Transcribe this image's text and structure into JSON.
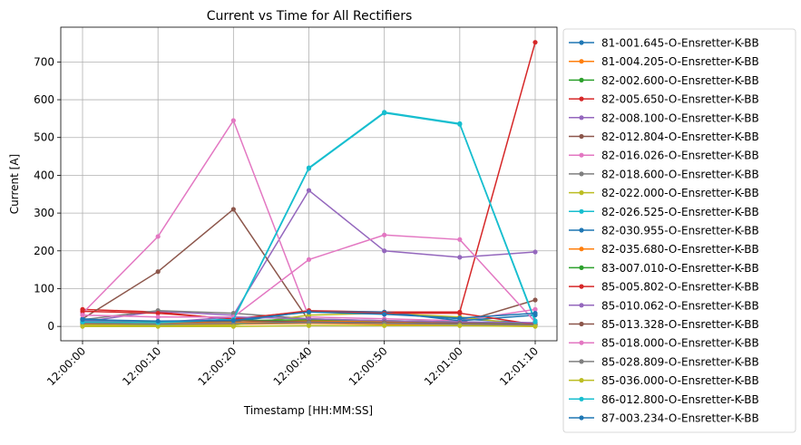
{
  "chart_data": {
    "type": "line",
    "title": "Current vs Time for All Rectifiers",
    "xlabel": "Timestamp [HH:MM:SS]",
    "ylabel": "Current [A]",
    "categories": [
      "12:00:00",
      "12:00:10",
      "12:00:20",
      "12:00:40",
      "12:00:50",
      "12:01:00",
      "12:01:10"
    ],
    "ylim": [
      -38,
      792
    ],
    "yticks": [
      0,
      100,
      200,
      300,
      400,
      500,
      600,
      700
    ],
    "grid": true,
    "legend": "outside-right",
    "series": [
      {
        "name": "81-001.645-O-Ensretter-K-BB",
        "color": "#1f77b4",
        "values": [
          15,
          12,
          15,
          40,
          35,
          20,
          8
        ]
      },
      {
        "name": "81-004.205-O-Ensretter-K-BB",
        "color": "#ff7f0e",
        "values": [
          5,
          4,
          6,
          8,
          6,
          5,
          3
        ]
      },
      {
        "name": "82-002.600-O-Ensretter-K-BB",
        "color": "#2ca02c",
        "values": [
          8,
          6,
          10,
          12,
          10,
          8,
          5
        ]
      },
      {
        "name": "82-005.650-O-Ensretter-K-BB",
        "color": "#d62728",
        "values": [
          45,
          38,
          18,
          42,
          38,
          38,
          752
        ]
      },
      {
        "name": "82-008.100-O-Ensretter-K-BB",
        "color": "#9467bd",
        "values": [
          12,
          40,
          30,
          360,
          200,
          183,
          197
        ]
      },
      {
        "name": "82-012.804-O-Ensretter-K-BB",
        "color": "#8c564b",
        "values": [
          20,
          145,
          310,
          15,
          12,
          10,
          70
        ]
      },
      {
        "name": "82-016.026-O-Ensretter-K-BB",
        "color": "#e377c2",
        "values": [
          35,
          238,
          545,
          25,
          20,
          15,
          45
        ]
      },
      {
        "name": "82-018.600-O-Ensretter-K-BB",
        "color": "#7f7f7f",
        "values": [
          18,
          42,
          35,
          20,
          15,
          12,
          5
        ]
      },
      {
        "name": "82-022.000-O-Ensretter-K-BB",
        "color": "#bcbd22",
        "values": [
          3,
          2,
          3,
          30,
          35,
          25,
          2
        ]
      },
      {
        "name": "82-026.525-O-Ensretter-K-BB",
        "color": "#17becf",
        "values": [
          10,
          8,
          20,
          420,
          567,
          537,
          15
        ]
      },
      {
        "name": "82-030.955-O-Ensretter-K-BB",
        "color": "#1f77b4",
        "values": [
          20,
          10,
          12,
          40,
          38,
          15,
          30
        ]
      },
      {
        "name": "82-035.680-O-Ensretter-K-BB",
        "color": "#ff7f0e",
        "values": [
          10,
          8,
          10,
          15,
          12,
          10,
          5
        ]
      },
      {
        "name": "83-007.010-O-Ensretter-K-BB",
        "color": "#2ca02c",
        "values": [
          15,
          12,
          15,
          18,
          15,
          12,
          8
        ]
      },
      {
        "name": "85-005.802-O-Ensretter-K-BB",
        "color": "#d62728",
        "values": [
          40,
          35,
          20,
          40,
          35,
          35,
          5
        ]
      },
      {
        "name": "85-010.062-O-Ensretter-K-BB",
        "color": "#9467bd",
        "values": [
          15,
          10,
          25,
          20,
          15,
          12,
          10
        ]
      },
      {
        "name": "85-013.328-O-Ensretter-K-BB",
        "color": "#8c564b",
        "values": [
          12,
          10,
          15,
          12,
          10,
          8,
          5
        ]
      },
      {
        "name": "85-018.000-O-Ensretter-K-BB",
        "color": "#e377c2",
        "values": [
          30,
          25,
          25,
          177,
          242,
          230,
          12
        ]
      },
      {
        "name": "85-028.809-O-Ensretter-K-BB",
        "color": "#7f7f7f",
        "values": [
          8,
          6,
          8,
          10,
          8,
          6,
          4
        ]
      },
      {
        "name": "85-036.000-O-Ensretter-K-BB",
        "color": "#bcbd22",
        "values": [
          0,
          0,
          0,
          2,
          2,
          2,
          0
        ]
      },
      {
        "name": "86-012.800-O-Ensretter-K-BB",
        "color": "#17becf",
        "values": [
          12,
          10,
          18,
          418,
          565,
          535,
          12
        ]
      },
      {
        "name": "87-003.234-O-Ensretter-K-BB",
        "color": "#1f77b4",
        "values": [
          18,
          14,
          16,
          38,
          32,
          22,
          35
        ]
      }
    ]
  }
}
